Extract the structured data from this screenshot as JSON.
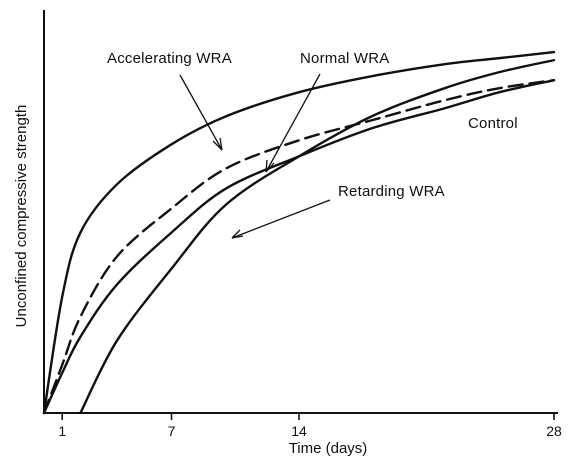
{
  "chart_data": {
    "type": "line",
    "xlabel": "Time (days)",
    "ylabel": "Unconfined compressive strength",
    "xlim": [
      0,
      28
    ],
    "ylim": [
      0,
      100
    ],
    "x_ticks": [
      {
        "value": 1,
        "label": "1"
      },
      {
        "value": 7,
        "label": "7"
      },
      {
        "value": 14,
        "label": "14"
      },
      {
        "value": 28,
        "label": "28"
      }
    ],
    "grid": false,
    "series": [
      {
        "name": "Accelerating WRA",
        "style": "solid",
        "x": [
          0,
          1,
          2,
          4,
          7,
          10,
          14,
          18,
          22,
          25,
          28
        ],
        "y": [
          0,
          29,
          45,
          57,
          67,
          74,
          80,
          84,
          87,
          88.5,
          90
        ]
      },
      {
        "name": "Normal WRA",
        "style": "dashed",
        "x": [
          0,
          1,
          2,
          4,
          7,
          10,
          14,
          18,
          22,
          25,
          28
        ],
        "y": [
          0,
          12,
          24,
          39,
          51,
          61,
          68,
          73,
          78,
          81,
          83
        ]
      },
      {
        "name": "Control",
        "style": "solid",
        "x": [
          0,
          1,
          2,
          4,
          7,
          10,
          14,
          18,
          22,
          25,
          28
        ],
        "y": [
          0,
          10,
          19,
          32,
          45,
          56,
          64,
          71,
          76,
          80,
          83
        ]
      },
      {
        "name": "Retarding WRA",
        "style": "solid",
        "x": [
          2,
          4,
          7,
          10,
          14,
          18,
          22,
          25,
          28
        ],
        "y": [
          0,
          18,
          36,
          52,
          64,
          74,
          81,
          85,
          88
        ]
      }
    ],
    "annotations": [
      {
        "text": "Accelerating WRA",
        "series": "Accelerating WRA"
      },
      {
        "text": "Normal WRA",
        "series": "Normal WRA"
      },
      {
        "text": "Control",
        "series": "Control"
      },
      {
        "text": "Retarding WRA",
        "series": "Retarding WRA"
      }
    ],
    "colors": {
      "line": "#111111",
      "background": "#ffffff"
    }
  }
}
